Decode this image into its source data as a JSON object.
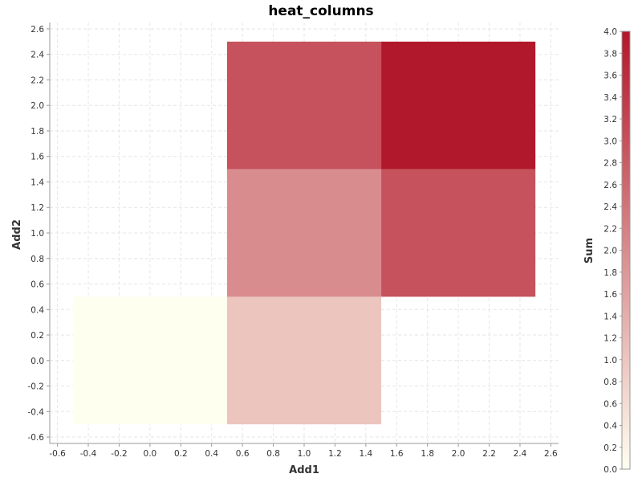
{
  "chart_data": {
    "type": "heatmap",
    "title": "heat_columns",
    "xlabel": "Add1",
    "ylabel": "Add2",
    "colorbar_label": "Sum",
    "xlim": [
      -0.65,
      2.65
    ],
    "ylim": [
      -0.65,
      2.65
    ],
    "x_ticks": [
      "-0.6",
      "-0.4",
      "-0.2",
      "0.0",
      "0.2",
      "0.4",
      "0.6",
      "0.8",
      "1.0",
      "1.2",
      "1.4",
      "1.6",
      "1.8",
      "2.0",
      "2.2",
      "2.4",
      "2.6"
    ],
    "y_ticks": [
      "-0.6",
      "-0.4",
      "-0.2",
      "0.0",
      "0.2",
      "0.4",
      "0.6",
      "0.8",
      "1.0",
      "1.2",
      "1.4",
      "1.6",
      "1.8",
      "2.0",
      "2.2",
      "2.4",
      "2.6"
    ],
    "cells": [
      {
        "x": 0,
        "y": 0,
        "value": 0.0
      },
      {
        "x": 1,
        "y": 0,
        "value": 1.0
      },
      {
        "x": 1,
        "y": 1,
        "value": 2.0
      },
      {
        "x": 2,
        "y": 1,
        "value": 3.0
      },
      {
        "x": 1,
        "y": 2,
        "value": 3.0
      },
      {
        "x": 2,
        "y": 2,
        "value": 4.0
      }
    ],
    "color_range": [
      0.0,
      4.0
    ],
    "colorbar_ticks": [
      "0.0",
      "0.2",
      "0.4",
      "0.6",
      "0.8",
      "1.0",
      "1.2",
      "1.4",
      "1.6",
      "1.8",
      "2.0",
      "2.2",
      "2.4",
      "2.6",
      "2.8",
      "3.0",
      "3.2",
      "3.4",
      "3.6",
      "3.8",
      "4.0"
    ],
    "colormap": {
      "low": "#fffff0",
      "high": "#b2182b"
    },
    "grid": true
  }
}
